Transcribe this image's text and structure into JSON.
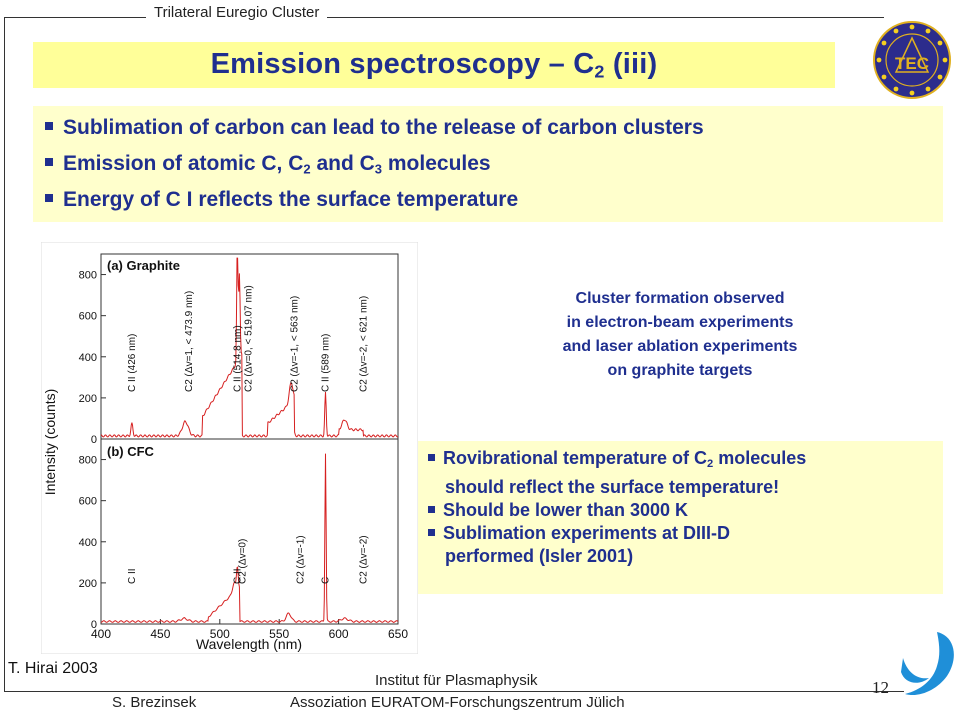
{
  "header": {
    "cluster_label": "Trilateral Euregio Cluster"
  },
  "title": {
    "main": "Emission spectroscopy – C",
    "sub": "2",
    "tail": " (iii)"
  },
  "logo_text": "TEC",
  "bullets": [
    {
      "text": "Sublimation of carbon can lead to the release of carbon clusters"
    },
    {
      "pre": "Emission of atomic C, C",
      "sub1": "2",
      "mid": " and C",
      "sub2": "3",
      "post": " molecules"
    },
    {
      "text": "Energy of C I reflects the surface temperature"
    }
  ],
  "cluster_note": [
    "Cluster formation observed",
    "in electron-beam experiments",
    "and laser ablation experiments",
    "on graphite targets"
  ],
  "box2": {
    "line1_pre": "Rovibrational temperature of C",
    "line1_sub": "2",
    "line1_post": " molecules",
    "line2": "should reflect the surface temperature!",
    "line3": "Should be lower than 3000 K",
    "line4": "Sublimation experiments at DIII-D",
    "line5": "performed (Isler 2001)"
  },
  "figure": {
    "ylabel": "Intensity (counts)",
    "xlabel": "Wavelength (nm)",
    "panel_a": "(a) Graphite",
    "panel_b": "(b) CFC",
    "x_ticks": [
      "400",
      "450",
      "500",
      "550",
      "600",
      "650"
    ],
    "y_ticks_a": [
      "0",
      "200",
      "400",
      "600",
      "800"
    ],
    "y_ticks_b": [
      "0",
      "200",
      "400",
      "600",
      "800"
    ],
    "annotations_a": [
      "C II (426 nm)",
      "C2 (Δv=1, < 473.9 nm)",
      "C II (514.8 nm)",
      "C2 (Δv=0, < 519.07 nm)",
      "C2 (Δv=-1, < 563 nm)",
      "C II (589 nm)",
      "C2 (Δv=-2, < 621 nm)"
    ],
    "annotations_b": [
      "C II",
      "C2 (Δv=0)",
      "C II",
      "C2 (Δv=-1)",
      "C",
      "C2 (Δv=-2)"
    ],
    "line_color": "#d62020"
  },
  "footer": {
    "citation": "T. Hirai 2003",
    "page_number": "12",
    "author": "S. Brezinsek",
    "institute_line1": "Institut für Plasmaphysik",
    "institute_line2": "Assoziation EURATOM-Forschungszentrum Jülich"
  },
  "colors": {
    "title_bg": "#ffff99",
    "box_bg": "#ffffcc",
    "text_blue": "#1f2f8f"
  }
}
